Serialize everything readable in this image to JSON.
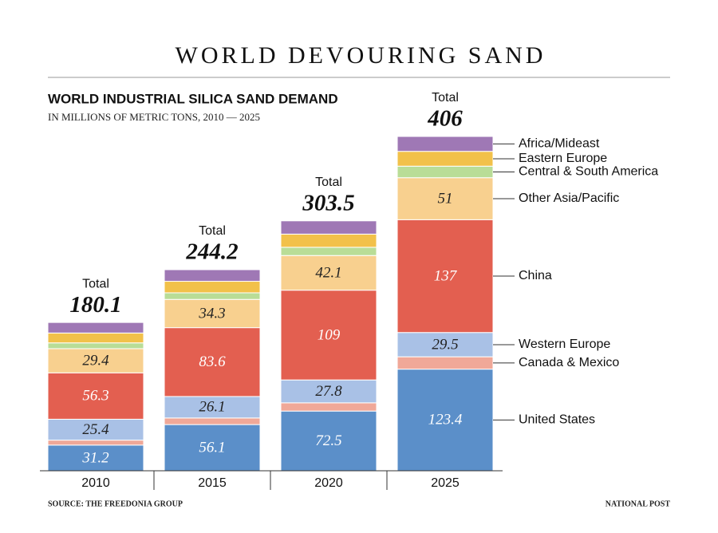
{
  "chart_data": {
    "type": "stacked-bar",
    "title": "WORLD DEVOURING SAND",
    "subtitle": "WORLD INDUSTRIAL SILICA SAND DEMAND",
    "subtitle2": "IN MILLIONS OF METRIC TONS, 2010 — 2025",
    "source": "SOURCE: THE FREEDONIA GROUP",
    "credit": "NATIONAL POST",
    "categories": [
      "2010",
      "2015",
      "2020",
      "2025"
    ],
    "total_label": "Total",
    "totals": [
      180.1,
      244.2,
      303.5,
      406
    ],
    "series": [
      {
        "name": "United States",
        "color": "#5b8fc9",
        "values": [
          31.2,
          56.1,
          72.5,
          123.4
        ],
        "labeled": true
      },
      {
        "name": "Canada & Mexico",
        "color": "#f0a898",
        "values": [
          6,
          8,
          10,
          15
        ],
        "labeled": false
      },
      {
        "name": "Western Europe",
        "color": "#a9c1e6",
        "values": [
          25.4,
          26.1,
          27.8,
          29.5
        ],
        "labeled": true
      },
      {
        "name": "China",
        "color": "#e35f50",
        "values": [
          56.3,
          83.6,
          109,
          137
        ],
        "labeled": true
      },
      {
        "name": "Other Asia/Pacific",
        "color": "#f8d08f",
        "values": [
          29.4,
          34.3,
          42.1,
          51
        ],
        "labeled": true
      },
      {
        "name": "Central & South America",
        "color": "#b9dd97",
        "values": [
          7,
          8,
          10,
          14
        ],
        "labeled": false
      },
      {
        "name": "Eastern Europe",
        "color": "#f2c14a",
        "values": [
          12,
          14,
          16,
          18
        ],
        "labeled": false
      },
      {
        "name": "Africa/Mideast",
        "color": "#9f78b5",
        "values": [
          12.8,
          14.1,
          16.1,
          18.1
        ],
        "labeled": false
      }
    ]
  }
}
